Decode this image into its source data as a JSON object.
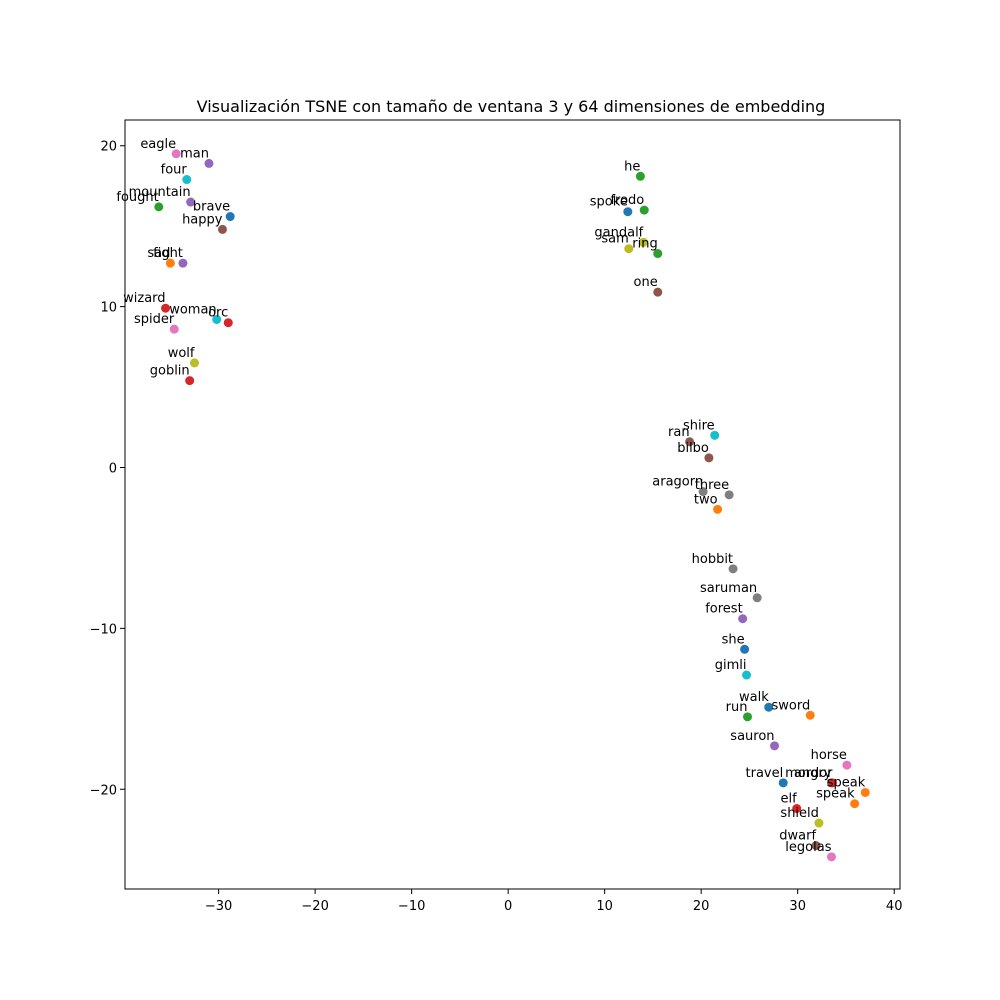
{
  "chart_data": {
    "type": "scatter",
    "title": "Visualización TSNE con tamaño de ventana 3 y 64 dimensiones de embedding",
    "xlabel": "",
    "ylabel": "",
    "xlim": [
      -39.7,
      40.6
    ],
    "ylim": [
      -26.2,
      21.6
    ],
    "xticks": [
      -30,
      -20,
      -10,
      0,
      10,
      20,
      30,
      40
    ],
    "yticks": [
      -20,
      -10,
      0,
      10,
      20
    ],
    "xtick_labels": [
      "−30",
      "−20",
      "−10",
      "0",
      "10",
      "20",
      "30",
      "40"
    ],
    "ytick_labels": [
      "−20",
      "−10",
      "0",
      "10",
      "20"
    ],
    "grid": false,
    "points": [
      {
        "label": "eagle",
        "x": -34.4,
        "y": 19.5,
        "color": "#e377c2"
      },
      {
        "label": "man",
        "x": -31.0,
        "y": 18.9,
        "color": "#9467bd"
      },
      {
        "label": "four",
        "x": -33.3,
        "y": 17.9,
        "color": "#17becf"
      },
      {
        "label": "mountain",
        "x": -32.9,
        "y": 16.5,
        "color": "#9467bd"
      },
      {
        "label": "fought",
        "x": -36.2,
        "y": 16.2,
        "color": "#2ca02c"
      },
      {
        "label": "brave",
        "x": -28.8,
        "y": 15.6,
        "color": "#1f77b4"
      },
      {
        "label": "happy",
        "x": -29.6,
        "y": 14.8,
        "color": "#8c564b"
      },
      {
        "label": "sad",
        "x": -35.0,
        "y": 12.7,
        "color": "#ff7f0e"
      },
      {
        "label": "fight",
        "x": -33.7,
        "y": 12.7,
        "color": "#9467bd"
      },
      {
        "label": "wizard",
        "x": -35.5,
        "y": 9.9,
        "color": "#d62728"
      },
      {
        "label": "woman",
        "x": -30.2,
        "y": 9.2,
        "color": "#17becf"
      },
      {
        "label": "orc",
        "x": -29.0,
        "y": 9.0,
        "color": "#d62728"
      },
      {
        "label": "spider",
        "x": -34.6,
        "y": 8.6,
        "color": "#e377c2"
      },
      {
        "label": "wolf",
        "x": -32.5,
        "y": 6.5,
        "color": "#bcbd22"
      },
      {
        "label": "goblin",
        "x": -33.0,
        "y": 5.4,
        "color": "#d62728"
      },
      {
        "label": "he",
        "x": 13.7,
        "y": 18.1,
        "color": "#2ca02c"
      },
      {
        "label": "spoke",
        "x": 12.4,
        "y": 15.9,
        "color": "#1f77b4"
      },
      {
        "label": "frodo",
        "x": 14.1,
        "y": 16.0,
        "color": "#2ca02c"
      },
      {
        "label": "gandalf",
        "x": 14.0,
        "y": 14.0,
        "color": "#bcbd22"
      },
      {
        "label": "sam",
        "x": 12.5,
        "y": 13.6,
        "color": "#bcbd22"
      },
      {
        "label": "ring",
        "x": 15.5,
        "y": 13.3,
        "color": "#2ca02c"
      },
      {
        "label": "one",
        "x": 15.5,
        "y": 10.9,
        "color": "#8c564b"
      },
      {
        "label": "shire",
        "x": 21.4,
        "y": 2.0,
        "color": "#17becf"
      },
      {
        "label": "ran",
        "x": 18.8,
        "y": 1.6,
        "color": "#8c564b"
      },
      {
        "label": "bilbo",
        "x": 20.8,
        "y": 0.6,
        "color": "#8c564b"
      },
      {
        "label": "three",
        "x": 22.9,
        "y": -1.7,
        "color": "#7f7f7f"
      },
      {
        "label": "aragorn",
        "x": 20.2,
        "y": -1.5,
        "color": "#7f7f7f"
      },
      {
        "label": "two",
        "x": 21.7,
        "y": -2.6,
        "color": "#ff7f0e"
      },
      {
        "label": "hobbit",
        "x": 23.3,
        "y": -6.3,
        "color": "#7f7f7f"
      },
      {
        "label": "saruman",
        "x": 25.8,
        "y": -8.1,
        "color": "#7f7f7f"
      },
      {
        "label": "forest",
        "x": 24.3,
        "y": -9.4,
        "color": "#9467bd"
      },
      {
        "label": "she",
        "x": 24.5,
        "y": -11.3,
        "color": "#1f77b4"
      },
      {
        "label": "gimli",
        "x": 24.7,
        "y": -12.9,
        "color": "#17becf"
      },
      {
        "label": "walk",
        "x": 27.0,
        "y": -14.9,
        "color": "#1f77b4"
      },
      {
        "label": "sword",
        "x": 31.3,
        "y": -15.4,
        "color": "#ff7f0e"
      },
      {
        "label": "run",
        "x": 24.8,
        "y": -15.5,
        "color": "#2ca02c"
      },
      {
        "label": "sauron",
        "x": 27.6,
        "y": -17.3,
        "color": "#9467bd"
      },
      {
        "label": "horse",
        "x": 35.1,
        "y": -18.5,
        "color": "#e377c2"
      },
      {
        "label": "angry",
        "x": 33.5,
        "y": -19.6,
        "color": "#8c564b"
      },
      {
        "label": "mordor",
        "x": 33.6,
        "y": -19.6,
        "color": "#d62728"
      },
      {
        "label": "travel",
        "x": 28.5,
        "y": -19.6,
        "color": "#1f77b4"
      },
      {
        "label": "speak",
        "x": 37.0,
        "y": -20.2,
        "color": "#ff7f0e"
      },
      {
        "label": "speak",
        "x": 35.9,
        "y": -20.9,
        "color": "#ff7f0e"
      },
      {
        "label": "elf",
        "x": 29.9,
        "y": -21.2,
        "color": "#d62728"
      },
      {
        "label": "shield",
        "x": 32.2,
        "y": -22.1,
        "color": "#bcbd22"
      },
      {
        "label": "dwarf",
        "x": 31.9,
        "y": -23.5,
        "color": "#8c564b"
      },
      {
        "label": "legolas",
        "x": 33.5,
        "y": -24.2,
        "color": "#e377c2"
      }
    ]
  }
}
